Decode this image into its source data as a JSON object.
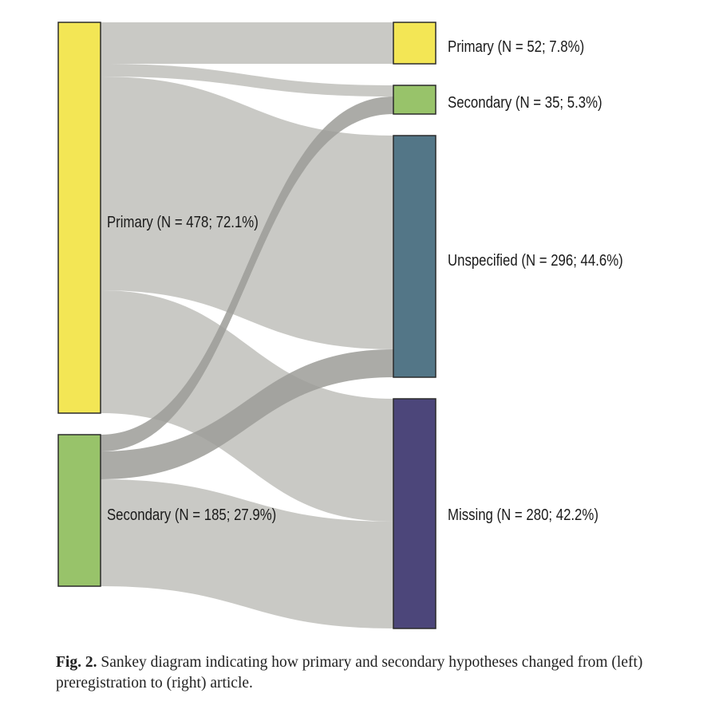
{
  "colors": {
    "flow": "#c6c6c2",
    "flow_secondary": "#9c9c98",
    "node_stroke": "#2b2b2b"
  },
  "nodes": {
    "left_primary": {
      "label": "Primary (N = 478; 72.1%)",
      "n": 478,
      "color": "#f3e655"
    },
    "left_secondary": {
      "label": "Secondary (N = 185; 27.9%)",
      "n": 185,
      "color": "#98c36a"
    },
    "right_primary": {
      "label": "Primary (N = 52; 7.8%)",
      "n": 52,
      "color": "#f3e655"
    },
    "right_secondary": {
      "label": "Secondary (N = 35; 5.3%)",
      "n": 35,
      "color": "#98c36a"
    },
    "right_unspecified": {
      "label": "Unspecified (N = 296; 44.6%)",
      "n": 296,
      "color": "#537687"
    },
    "right_missing": {
      "label": "Missing (N = 280; 42.2%)",
      "n": 280,
      "color": "#4c467a"
    }
  },
  "caption": {
    "label": "Fig. 2.",
    "text": "Sankey diagram indicating how primary and secondary hypotheses changed from (left) preregistration to (right) article."
  }
}
